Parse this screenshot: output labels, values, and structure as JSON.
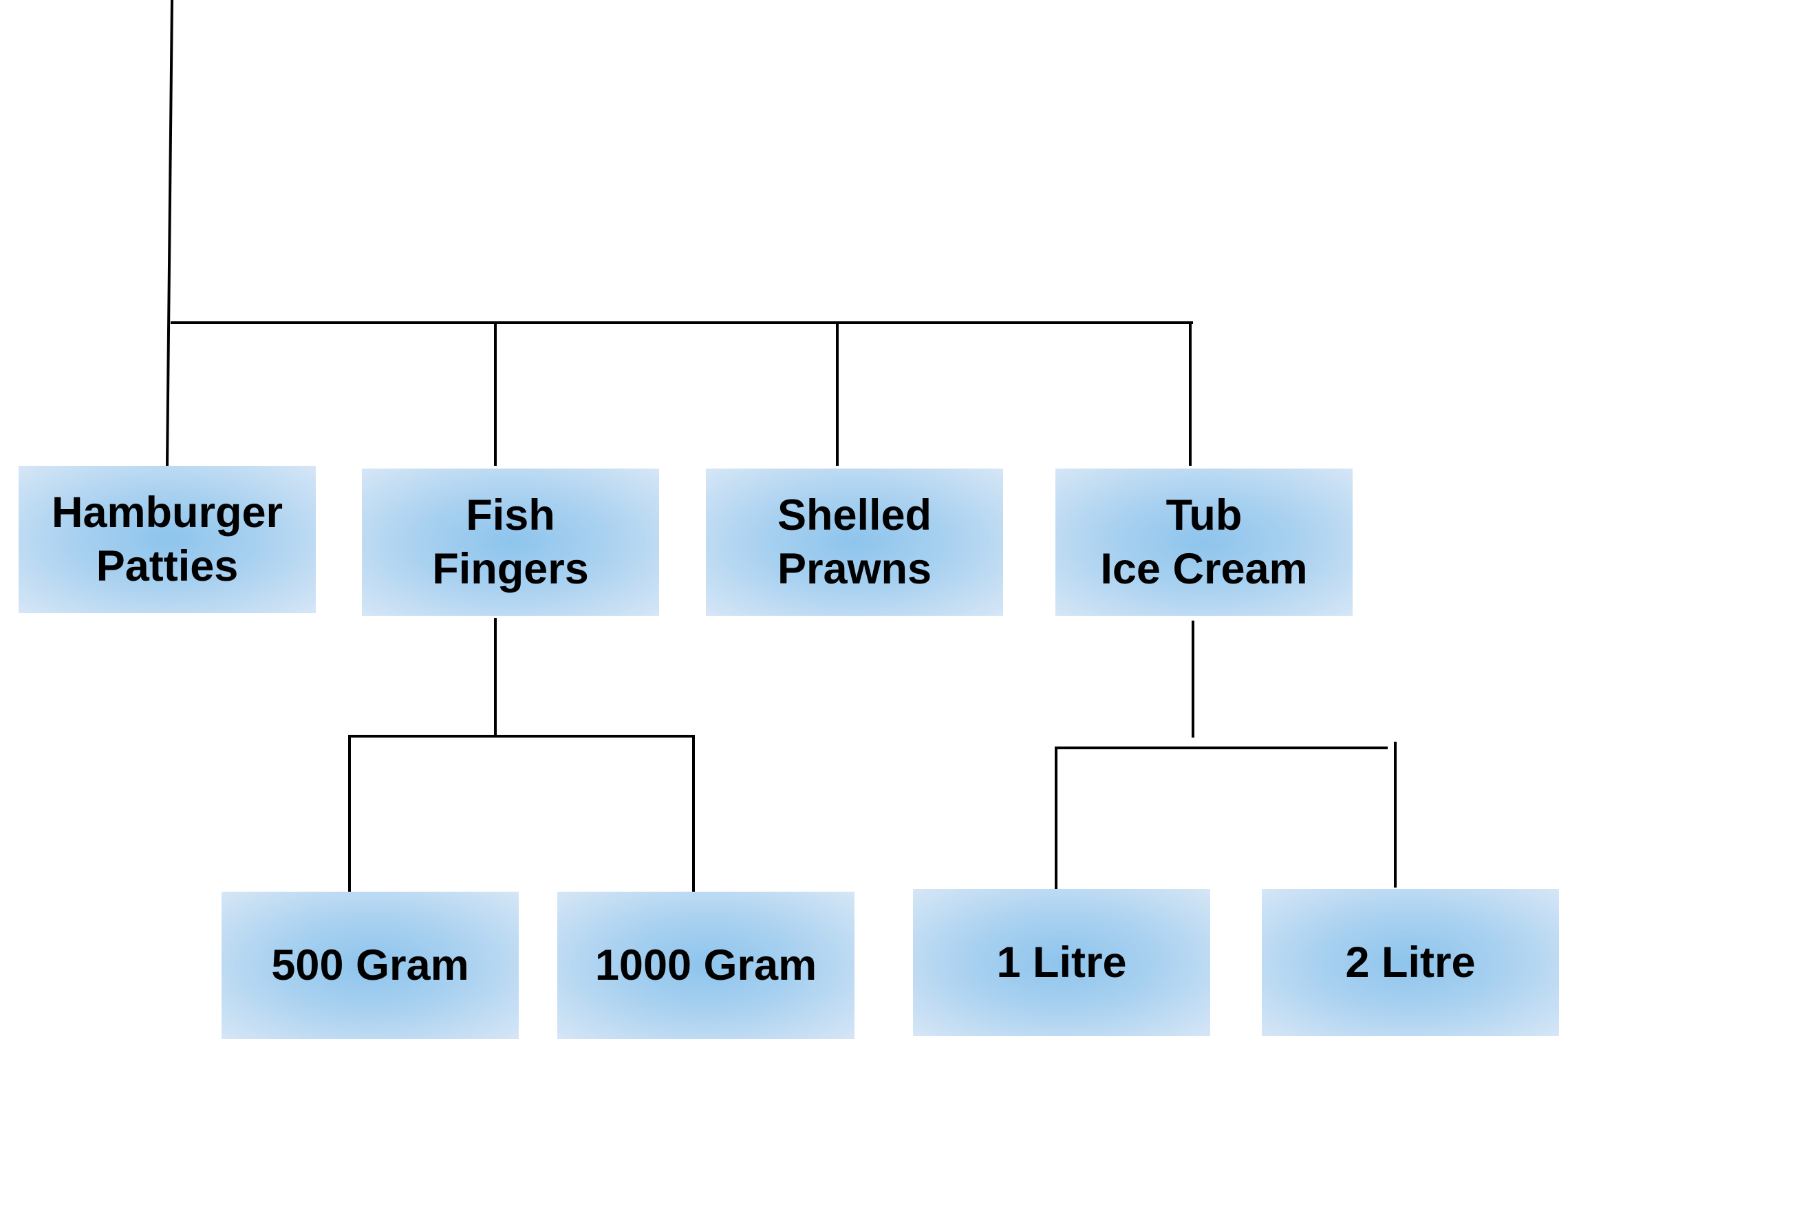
{
  "colors": {
    "node_center": "#8ec4ec",
    "node_edge": "#d6e6f6",
    "connector": "#000000",
    "text": "#000000"
  },
  "nodes": {
    "hamburger_patties": {
      "label": "Hamburger\nPatties"
    },
    "fish_fingers": {
      "label": "Fish\nFingers"
    },
    "shelled_prawns": {
      "label": "Shelled\nPrawns"
    },
    "tub_ice_cream": {
      "label": "Tub\nIce Cream"
    },
    "g500": {
      "label": "500 Gram"
    },
    "g1000": {
      "label": "1000 Gram"
    },
    "l1": {
      "label": "1 Litre"
    },
    "l2": {
      "label": "2 Litre"
    }
  },
  "edges": [
    {
      "from": "parent",
      "to": "hamburger_patties"
    },
    {
      "from": "parent",
      "to": "fish_fingers"
    },
    {
      "from": "parent",
      "to": "shelled_prawns"
    },
    {
      "from": "parent",
      "to": "tub_ice_cream"
    },
    {
      "from": "fish_fingers",
      "to": "g500"
    },
    {
      "from": "fish_fingers",
      "to": "g1000"
    },
    {
      "from": "tub_ice_cream",
      "to": "l1"
    },
    {
      "from": "tub_ice_cream",
      "to": "l2"
    }
  ]
}
